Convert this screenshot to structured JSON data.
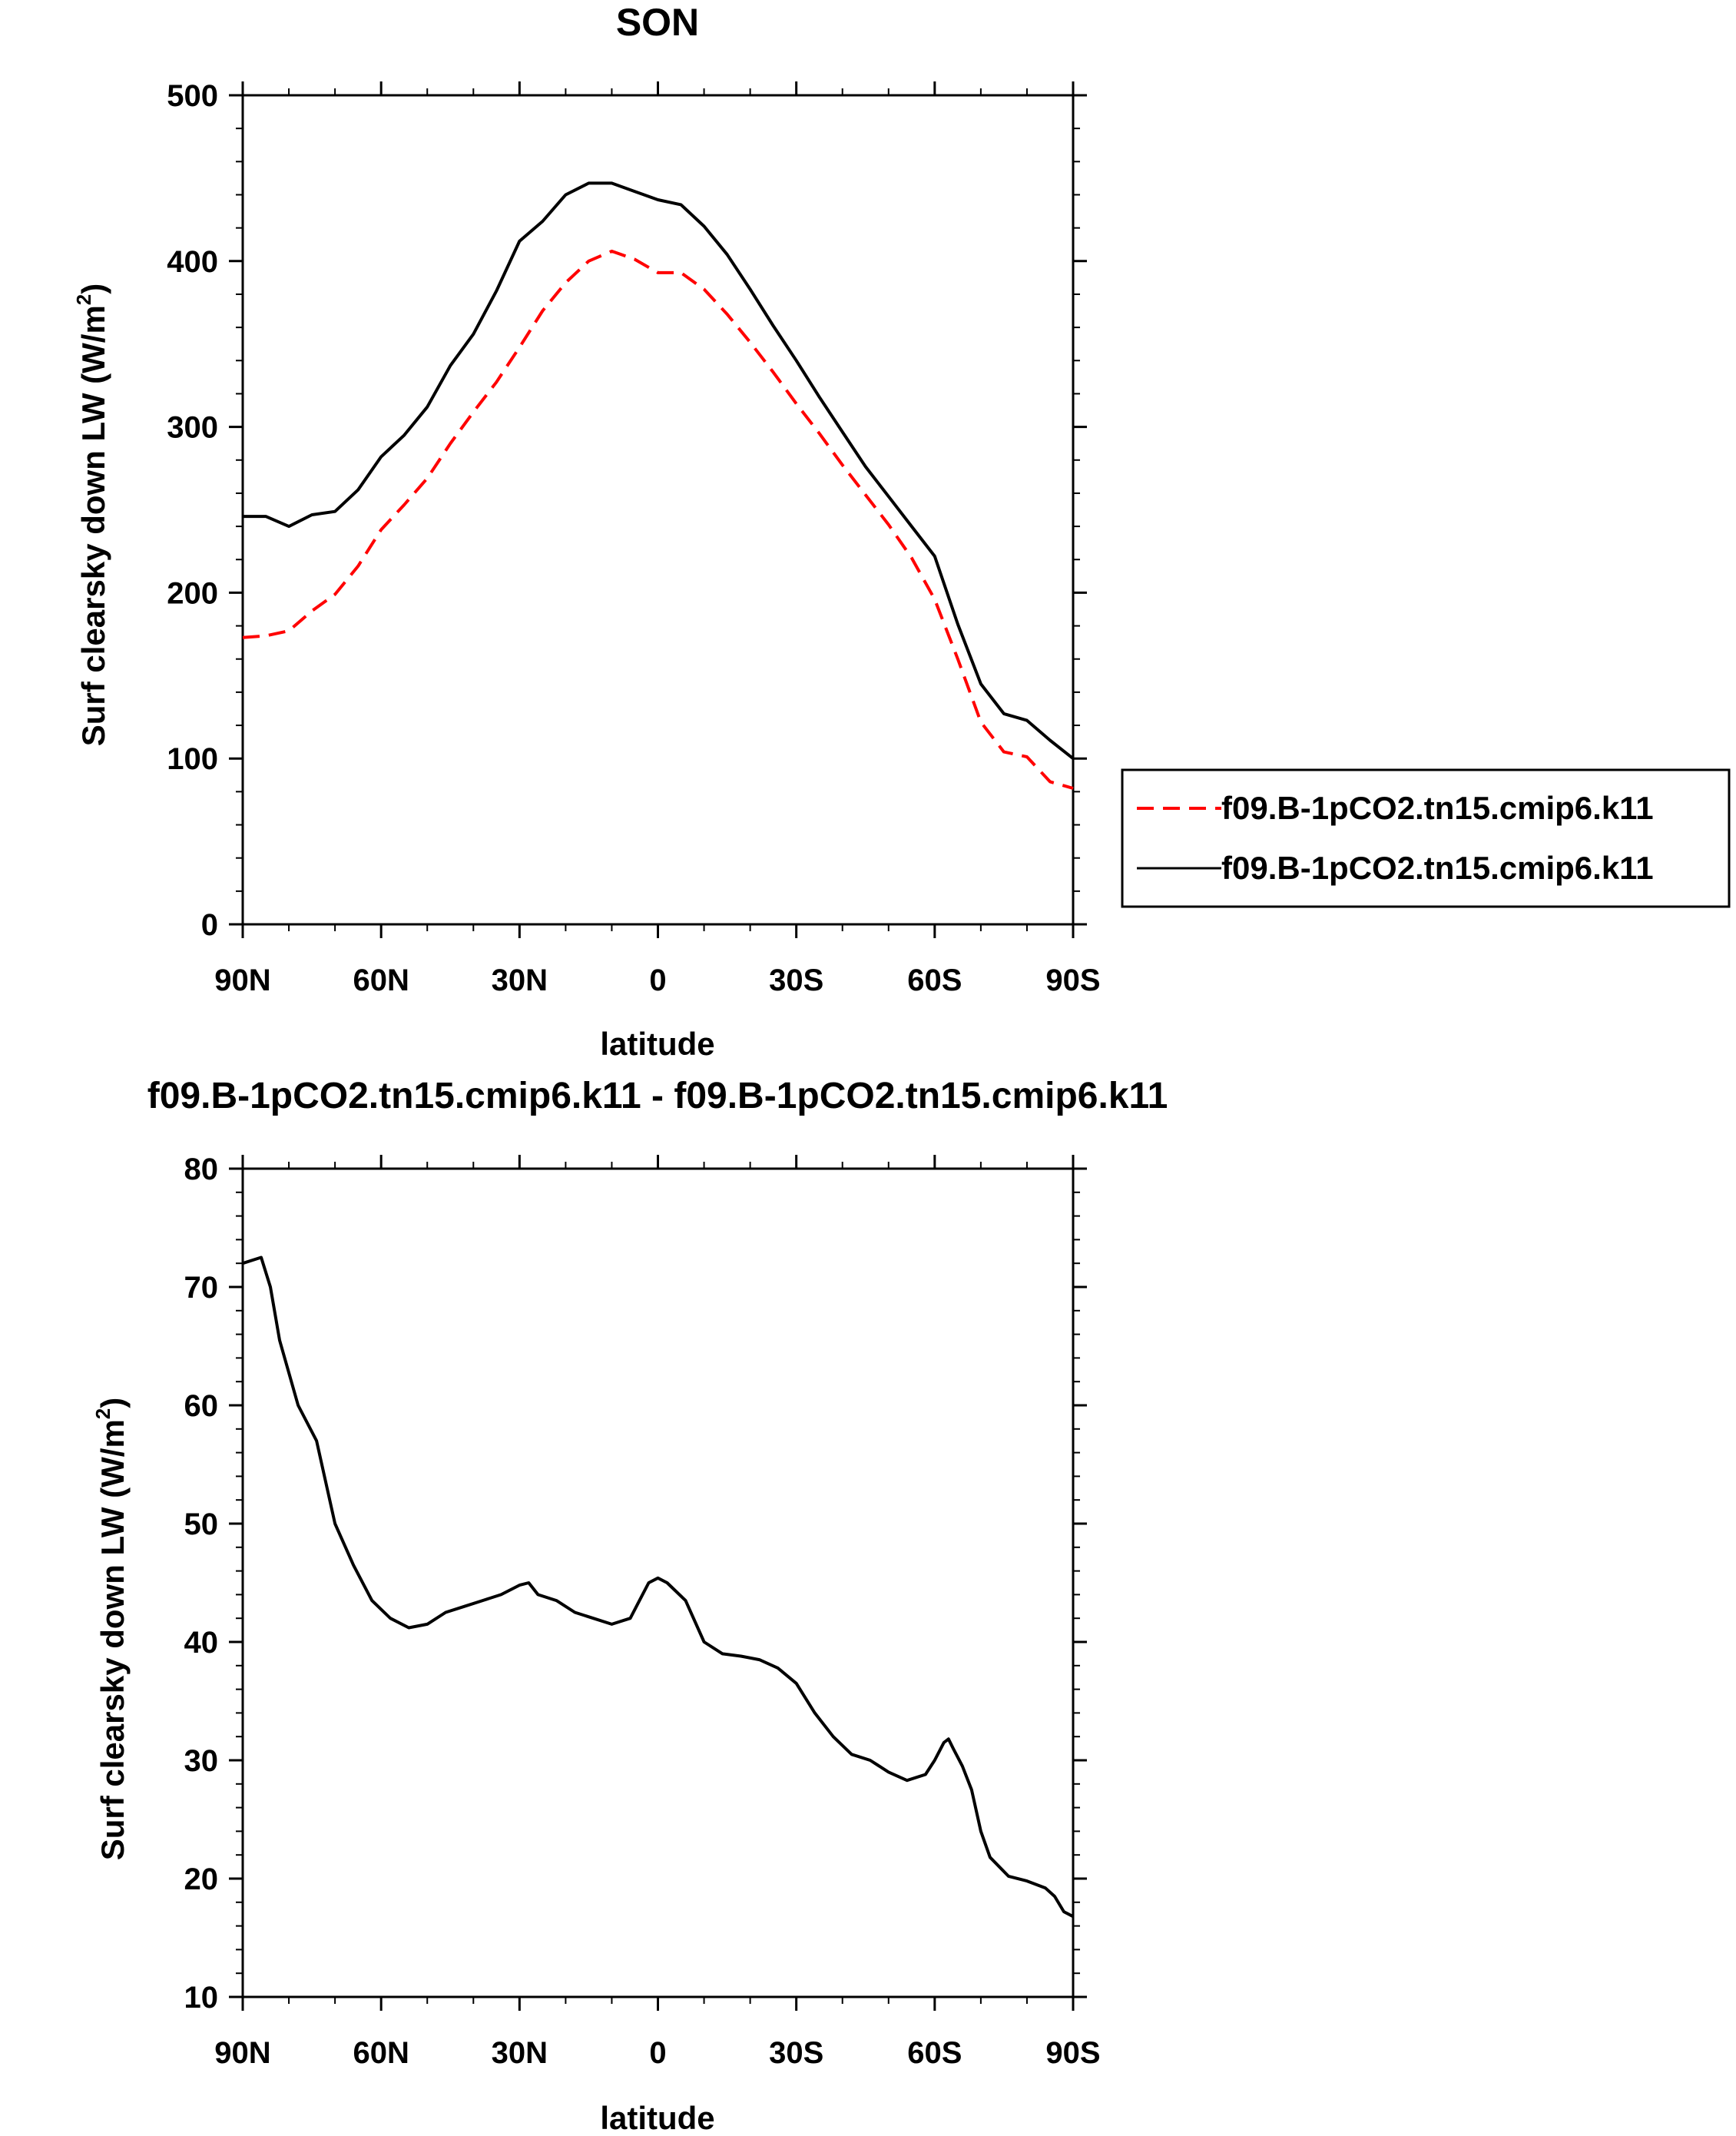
{
  "chart_data": [
    {
      "type": "line",
      "title": "SON",
      "xlabel": "latitude",
      "ylabel": "Surf clearsky down LW (W/m",
      "ylabel_sup": "2",
      "ylabel_close": ")",
      "xlim": [
        90,
        -90
      ],
      "ylim": [
        0,
        500
      ],
      "x_ticks": [
        90,
        60,
        30,
        0,
        -30,
        -60,
        -90
      ],
      "x_tick_labels": [
        "90N",
        "60N",
        "30N",
        "0",
        "30S",
        "60S",
        "90S"
      ],
      "y_ticks": [
        0,
        100,
        200,
        300,
        400,
        500
      ],
      "y_tick_labels": [
        "0",
        "100",
        "200",
        "300",
        "400",
        "500"
      ],
      "legend": "right",
      "series": [
        {
          "name": "f09.B-1pCO2.tn15.cmip6.k11",
          "color": "#ff0000",
          "dash": "dashed",
          "x": [
            90,
            85,
            80,
            75,
            70,
            65,
            60,
            55,
            50,
            45,
            40,
            35,
            30,
            25,
            20,
            15,
            10,
            5,
            0,
            -5,
            -10,
            -15,
            -20,
            -25,
            -30,
            -35,
            -40,
            -45,
            -50,
            -55,
            -60,
            -65,
            -70,
            -75,
            -80,
            -85,
            -90
          ],
          "y": [
            173,
            174,
            177,
            189,
            199,
            216,
            238,
            253,
            269,
            290,
            309,
            327,
            348,
            370,
            387,
            400,
            406,
            401,
            393,
            393,
            383,
            368,
            351,
            333,
            314,
            296,
            277,
            259,
            241,
            221,
            196,
            160,
            122,
            104,
            101,
            86,
            82
          ]
        },
        {
          "name": "f09.B-1pCO2.tn15.cmip6.k11",
          "color": "#000000",
          "dash": "solid",
          "x": [
            90,
            85,
            80,
            75,
            70,
            65,
            60,
            55,
            50,
            45,
            40,
            35,
            30,
            25,
            20,
            15,
            10,
            5,
            0,
            -5,
            -10,
            -15,
            -20,
            -25,
            -30,
            -35,
            -40,
            -45,
            -50,
            -55,
            -60,
            -65,
            -70,
            -75,
            -80,
            -85,
            -90
          ],
          "y": [
            246,
            246,
            240,
            247,
            249,
            262,
            282,
            295,
            312,
            337,
            356,
            382,
            412,
            424,
            440,
            447,
            447,
            442,
            437,
            434,
            421,
            404,
            383,
            361,
            340,
            318,
            297,
            276,
            258,
            240,
            222,
            181,
            145,
            127,
            123,
            111,
            100
          ]
        }
      ]
    },
    {
      "type": "line",
      "title": "f09.B-1pCO2.tn15.cmip6.k11 - f09.B-1pCO2.tn15.cmip6.k11",
      "xlabel": "latitude",
      "ylabel": "Surf clearsky down LW (W/m",
      "ylabel_sup": "2",
      "ylabel_close": ")",
      "xlim": [
        90,
        -90
      ],
      "ylim": [
        10,
        80
      ],
      "x_ticks": [
        90,
        60,
        30,
        0,
        -30,
        -60,
        -90
      ],
      "x_tick_labels": [
        "90N",
        "60N",
        "30N",
        "0",
        "30S",
        "60S",
        "90S"
      ],
      "y_ticks": [
        10,
        20,
        30,
        40,
        50,
        60,
        70,
        80
      ],
      "y_tick_labels": [
        "10",
        "20",
        "30",
        "40",
        "50",
        "60",
        "70",
        "80"
      ],
      "series": [
        {
          "color": "#000000",
          "dash": "solid",
          "x": [
            90,
            86,
            84,
            82,
            78,
            74,
            70,
            66,
            62,
            58,
            54,
            50,
            46,
            42,
            38,
            34,
            30,
            28,
            26,
            22,
            18,
            14,
            10,
            6,
            4,
            2,
            0,
            -2,
            -6,
            -10,
            -14,
            -18,
            -22,
            -26,
            -30,
            -34,
            -38,
            -42,
            -46,
            -50,
            -54,
            -58,
            -60,
            -62,
            -63,
            -64,
            -66,
            -68,
            -70,
            -72,
            -76,
            -80,
            -84,
            -86,
            -88,
            -90
          ],
          "y": [
            72.0,
            72.5,
            70.0,
            65.5,
            60.0,
            57.0,
            50.0,
            46.5,
            43.5,
            42.0,
            41.2,
            41.5,
            42.5,
            43.0,
            43.5,
            44.0,
            44.8,
            45.0,
            44.0,
            43.5,
            42.5,
            42.0,
            41.5,
            42.0,
            43.5,
            45.0,
            45.4,
            45.0,
            43.5,
            40.0,
            39.0,
            38.8,
            38.5,
            37.8,
            36.5,
            34.0,
            32.0,
            30.5,
            30.0,
            29.0,
            28.3,
            28.8,
            30.0,
            31.5,
            31.8,
            31.0,
            29.5,
            27.5,
            24.0,
            21.8,
            20.2,
            19.8,
            19.2,
            18.5,
            17.2,
            16.8
          ]
        }
      ]
    }
  ]
}
